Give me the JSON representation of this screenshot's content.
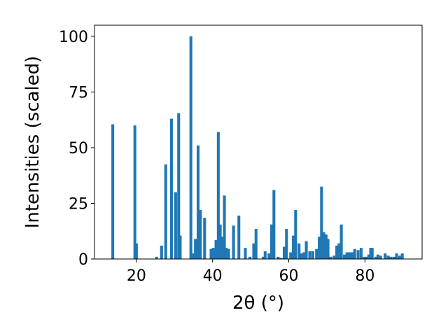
{
  "chart_data": {
    "type": "bar",
    "xlabel": "2θ (°)",
    "ylabel": "Intensities (scaled)",
    "xlim": [
      9,
      95
    ],
    "ylim": [
      0,
      105
    ],
    "xticks": [
      20,
      40,
      60,
      80
    ],
    "yticks": [
      0,
      25,
      50,
      75,
      100
    ],
    "bar_width": 0.75,
    "bar_color": "#1f77b4",
    "grid": false,
    "legend": "none",
    "x": [
      13.8,
      19.6,
      20.0,
      25.3,
      26.6,
      27.7,
      29.2,
      30.3,
      31.1,
      31.5,
      34.3,
      34.9,
      35.5,
      36.2,
      36.8,
      37.9,
      39.6,
      40.2,
      40.9,
      41.5,
      42.0,
      42.4,
      43.1,
      43.6,
      44.2,
      45.5,
      46.9,
      48.6,
      49.8,
      50.8,
      51.4,
      53.3,
      53.8,
      54.8,
      55.5,
      56.1,
      57.2,
      58.0,
      58.8,
      59.4,
      60.5,
      61.2,
      61.8,
      62.7,
      63.4,
      64.0,
      64.6,
      65.5,
      66.3,
      67.3,
      68.0,
      68.6,
      69.2,
      69.8,
      70.3,
      71.0,
      71.9,
      72.6,
      73.2,
      73.8,
      74.6,
      75.3,
      75.9,
      76.6,
      77.3,
      78.2,
      79.0,
      79.8,
      80.4,
      81.0,
      81.5,
      81.9,
      82.8,
      83.4,
      84.1,
      85.3,
      86.1,
      86.8,
      87.6,
      88.3,
      89.1,
      89.8
    ],
    "values": [
      60.5,
      60,
      7,
      1,
      6,
      42.5,
      63,
      30,
      65.5,
      10.5,
      100,
      2.5,
      9,
      51,
      22,
      18.5,
      4.5,
      5,
      8.5,
      57,
      15.5,
      10,
      28.5,
      5,
      4.5,
      15,
      19.5,
      5,
      1,
      7,
      13.5,
      1,
      3.5,
      2.5,
      15.5,
      31,
      1,
      0.5,
      5.5,
      13.5,
      3,
      10.5,
      22,
      7,
      2.5,
      3,
      8,
      3.5,
      3.5,
      4.5,
      10,
      32.5,
      12,
      11,
      9,
      1,
      1.5,
      6,
      7,
      15.5,
      2,
      3,
      3,
      3,
      4.5,
      4,
      5,
      1,
      1,
      2,
      5,
      5,
      1,
      2,
      1.5,
      2.5,
      1.5,
      1,
      1,
      2.5,
      1.5,
      2.5
    ]
  }
}
